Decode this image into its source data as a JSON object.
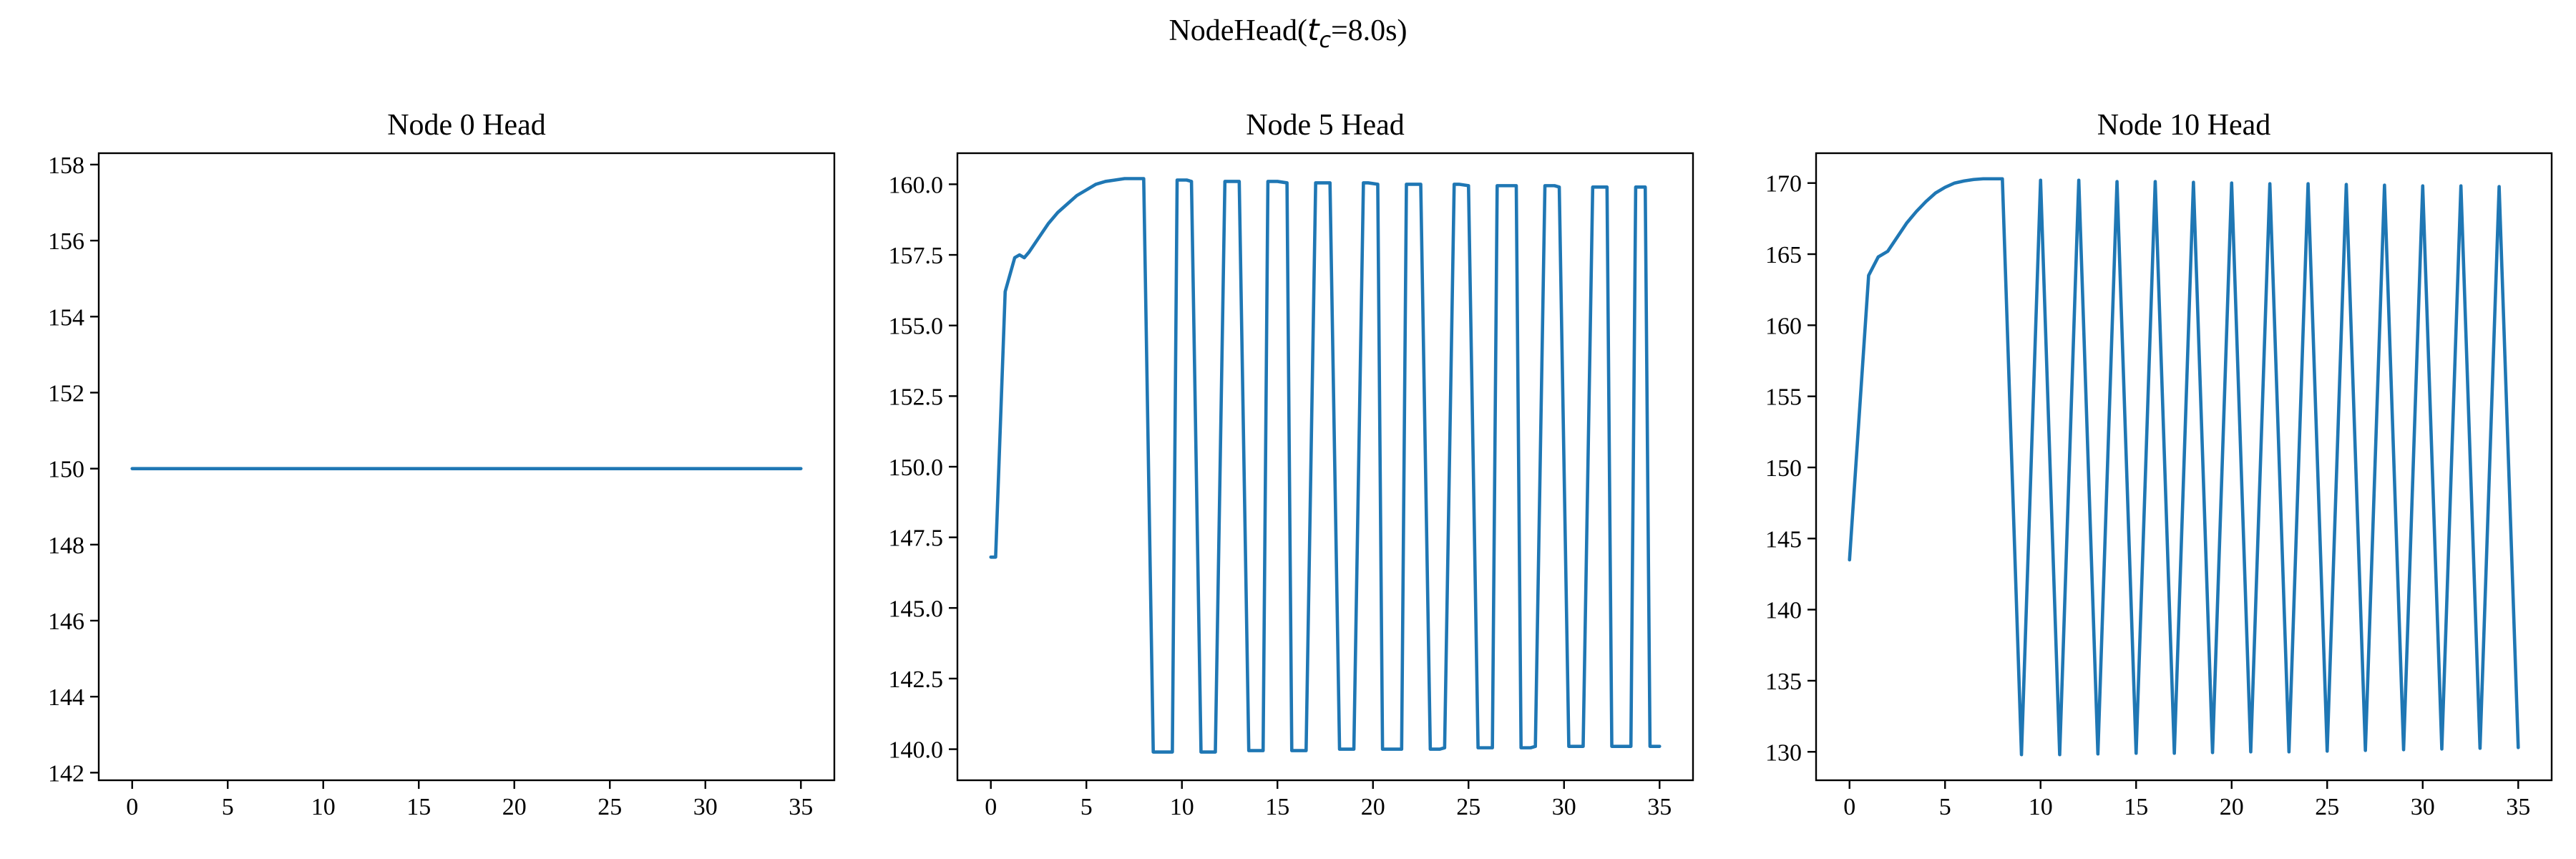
{
  "figure": {
    "title_prefix": "NodeHead(",
    "title_math_t": "t",
    "title_math_sub": "c",
    "title_suffix": "=8.0s)"
  },
  "colors": {
    "line": "#1f77b4"
  },
  "chart_data": [
    {
      "type": "line",
      "title": "Node 0 Head",
      "xlabel": "",
      "ylabel": "",
      "xlim": [
        -1.75,
        36.75
      ],
      "ylim": [
        141.8,
        158.3
      ],
      "xticks": [
        0,
        5,
        10,
        15,
        20,
        25,
        30,
        35
      ],
      "yticks": [
        142,
        144,
        146,
        148,
        150,
        152,
        154,
        156,
        158
      ],
      "ytick_labels": [
        "142",
        "144",
        "146",
        "148",
        "150",
        "152",
        "154",
        "156",
        "158"
      ],
      "grid": false,
      "series": [
        {
          "x": [
            0,
            35
          ],
          "y": [
            150.0,
            150.0
          ]
        }
      ]
    },
    {
      "type": "line",
      "title": "Node 5 Head",
      "xlabel": "",
      "ylabel": "",
      "xlim": [
        -1.75,
        36.75
      ],
      "ylim": [
        138.9,
        161.1
      ],
      "xticks": [
        0,
        5,
        10,
        15,
        20,
        25,
        30,
        35
      ],
      "yticks": [
        140.0,
        142.5,
        145.0,
        147.5,
        150.0,
        152.5,
        155.0,
        157.5,
        160.0
      ],
      "ytick_labels": [
        "140.0",
        "142.5",
        "145.0",
        "147.5",
        "150.0",
        "152.5",
        "155.0",
        "157.5",
        "160.0"
      ],
      "grid": false,
      "series": [
        {
          "x": [
            0,
            0.25,
            0.75,
            1.25,
            1.5,
            1.75,
            2,
            2.5,
            3,
            3.5,
            4,
            4.5,
            5,
            5.5,
            6,
            6.5,
            7,
            7.5,
            8,
            8.5,
            9,
            9.5,
            9.75,
            10.25,
            10.5,
            11,
            11.5,
            11.75,
            12.25,
            12.5,
            13,
            13.5,
            13.75,
            14.25,
            14.5,
            15,
            15.5,
            15.75,
            16.25,
            16.5,
            17,
            17.5,
            17.75,
            18.25,
            18.5,
            19,
            19.5,
            19.75,
            20.25,
            20.5,
            21,
            21.5,
            21.75,
            22.25,
            22.5,
            23,
            23.5,
            23.75,
            24.25,
            24.5,
            25,
            25.5,
            25.75,
            26.25,
            26.5,
            27,
            27.5,
            27.75,
            28.25,
            28.5,
            29,
            29.5,
            29.75,
            30.25,
            30.5,
            31,
            31.5,
            31.75,
            32.25,
            32.5,
            33,
            33.5,
            33.75,
            34.25,
            34.5,
            35
          ],
          "y": [
            146.8,
            146.8,
            156.2,
            157.4,
            157.5,
            157.4,
            157.6,
            158.1,
            158.6,
            159.0,
            159.3,
            159.6,
            159.8,
            160.0,
            160.1,
            160.15,
            160.2,
            160.2,
            160.2,
            139.9,
            139.9,
            139.9,
            160.15,
            160.15,
            160.1,
            139.9,
            139.9,
            139.9,
            160.1,
            160.1,
            160.1,
            139.95,
            139.95,
            139.95,
            160.1,
            160.1,
            160.05,
            139.95,
            139.95,
            139.95,
            160.05,
            160.05,
            160.05,
            140.0,
            140.0,
            140.0,
            160.05,
            160.05,
            160.0,
            140.0,
            140.0,
            140.0,
            160.0,
            160.0,
            160.0,
            140.0,
            140.0,
            140.05,
            160.0,
            160.0,
            159.95,
            140.05,
            140.05,
            140.05,
            159.95,
            159.95,
            159.95,
            140.05,
            140.05,
            140.1,
            159.95,
            159.95,
            159.9,
            140.1,
            140.1,
            140.1,
            159.9,
            159.9,
            159.9,
            140.1,
            140.1,
            140.1,
            159.9,
            159.9,
            140.1,
            140.1
          ]
        }
      ]
    },
    {
      "type": "line",
      "title": "Node 10 Head",
      "xlabel": "",
      "ylabel": "",
      "xlim": [
        -1.75,
        36.75
      ],
      "ylim": [
        128.0,
        172.1
      ],
      "xticks": [
        0,
        5,
        10,
        15,
        20,
        25,
        30,
        35
      ],
      "yticks": [
        130,
        135,
        140,
        145,
        150,
        155,
        160,
        165,
        170
      ],
      "ytick_labels": [
        "130",
        "135",
        "140",
        "145",
        "150",
        "155",
        "160",
        "165",
        "170"
      ],
      "grid": false,
      "series": [
        {
          "x": [
            0,
            1,
            1.5,
            2,
            2.5,
            3,
            3.5,
            4,
            4.5,
            5,
            5.5,
            6,
            6.5,
            7,
            7.5,
            8,
            9,
            10,
            11,
            12,
            13,
            14,
            15,
            16,
            17,
            18,
            19,
            20,
            21,
            22,
            23,
            24,
            25,
            26,
            27,
            28,
            29,
            30,
            31,
            32,
            33,
            34,
            35
          ],
          "y": [
            143.5,
            163.5,
            164.8,
            165.2,
            166.2,
            167.2,
            168.0,
            168.7,
            169.3,
            169.7,
            170.0,
            170.15,
            170.25,
            170.3,
            170.3,
            170.3,
            129.8,
            170.2,
            129.8,
            170.2,
            129.85,
            170.1,
            129.9,
            170.1,
            129.9,
            170.05,
            129.95,
            170.0,
            130.0,
            169.95,
            130.0,
            169.95,
            130.05,
            169.9,
            130.1,
            169.85,
            130.15,
            169.8,
            130.2,
            169.8,
            130.25,
            169.75,
            130.3
          ]
        }
      ]
    }
  ]
}
